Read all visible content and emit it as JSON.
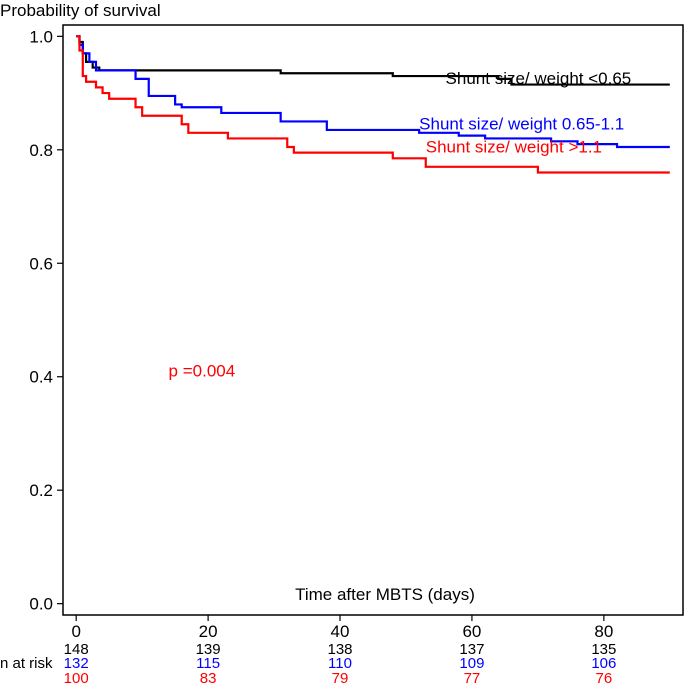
{
  "chart_data": {
    "type": "line",
    "title": "",
    "ylabel": "Probability of survival",
    "xlabel": "Time after MBTS (days)",
    "xlim": [
      -2,
      92
    ],
    "ylim": [
      -0.02,
      1.02
    ],
    "x_ticks": [
      0,
      20,
      40,
      60,
      80
    ],
    "y_ticks": [
      0.0,
      0.2,
      0.4,
      0.6,
      0.8,
      1.0
    ],
    "x_tick_labels": [
      "0",
      "20",
      "40",
      "60",
      "80"
    ],
    "y_tick_labels": [
      "0.0",
      "0.2",
      "0.4",
      "0.6",
      "0.8",
      "1.0"
    ],
    "legend": "inline labels near curve ends",
    "grid": false,
    "annotation": {
      "text": "p =0.004",
      "x": 14,
      "y": 0.4,
      "color": "#ff0000"
    },
    "series": [
      {
        "name": "Shunt size/ weight <0.65",
        "color": "#000000",
        "label_pos": [
          56,
          0.916
        ],
        "steps": [
          [
            0,
            1.0
          ],
          [
            0.5,
            0.99
          ],
          [
            1,
            0.97
          ],
          [
            1.5,
            0.955
          ],
          [
            2.5,
            0.945
          ],
          [
            3.5,
            0.94
          ],
          [
            31,
            0.935
          ],
          [
            48,
            0.93
          ],
          [
            64,
            0.925
          ],
          [
            66,
            0.915
          ],
          [
            90,
            0.915
          ]
        ]
      },
      {
        "name": "Shunt size/ weight 0.65-1.1",
        "color": "#0000ff",
        "label_pos": [
          52,
          0.836
        ],
        "steps": [
          [
            0,
            1.0
          ],
          [
            0.5,
            0.985
          ],
          [
            1,
            0.97
          ],
          [
            2,
            0.955
          ],
          [
            3,
            0.94
          ],
          [
            9,
            0.925
          ],
          [
            11,
            0.895
          ],
          [
            15,
            0.88
          ],
          [
            16,
            0.875
          ],
          [
            22,
            0.865
          ],
          [
            31,
            0.85
          ],
          [
            38,
            0.835
          ],
          [
            52,
            0.83
          ],
          [
            58,
            0.825
          ],
          [
            62,
            0.82
          ],
          [
            72,
            0.815
          ],
          [
            76,
            0.81
          ],
          [
            82,
            0.805
          ],
          [
            90,
            0.805
          ]
        ]
      },
      {
        "name": "Shunt size/ weight >1.1",
        "color": "#ff0000",
        "label_pos": [
          53,
          0.795
        ],
        "steps": [
          [
            0,
            1.0
          ],
          [
            0.5,
            0.975
          ],
          [
            1,
            0.93
          ],
          [
            1.5,
            0.92
          ],
          [
            3,
            0.91
          ],
          [
            4,
            0.9
          ],
          [
            5,
            0.89
          ],
          [
            9,
            0.875
          ],
          [
            10,
            0.86
          ],
          [
            16,
            0.845
          ],
          [
            17,
            0.83
          ],
          [
            23,
            0.82
          ],
          [
            32,
            0.805
          ],
          [
            33,
            0.795
          ],
          [
            48,
            0.785
          ],
          [
            53,
            0.77
          ],
          [
            70,
            0.76
          ],
          [
            90,
            0.76
          ]
        ]
      }
    ],
    "risk_table": {
      "label": "n at risk",
      "times": [
        0,
        20,
        40,
        60,
        80
      ],
      "rows": [
        {
          "color": "#000000",
          "values": [
            "148",
            "139",
            "138",
            "137",
            "135"
          ]
        },
        {
          "color": "#0000ff",
          "values": [
            "132",
            "115",
            "110",
            "109",
            "106"
          ]
        },
        {
          "color": "#ff0000",
          "values": [
            "100",
            "83",
            "79",
            "77",
            "76"
          ]
        }
      ]
    }
  }
}
